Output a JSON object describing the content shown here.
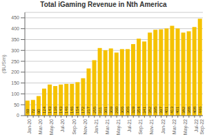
{
  "chart_data": {
    "type": "bar",
    "title": "Total iGaming Revenue in Nth America",
    "ylabel": "($USm)",
    "categories": [
      "Jan-20",
      null,
      "Mar-20",
      null,
      "May-20",
      null,
      "Jul-20",
      null,
      "Sep-20",
      null,
      "Nov-20",
      null,
      "Jan-21",
      null,
      "Mar-21",
      null,
      "May-21",
      null,
      "Jul-21",
      null,
      "Sep-21",
      null,
      "Nov-21",
      null,
      "Jan-22",
      null,
      "Mar-22",
      null,
      "May-22",
      null,
      "Jul-22",
      "Sep-22"
    ],
    "values": [
      69,
      72,
      90,
      124,
      143,
      136,
      143,
      146,
      146,
      154,
      172,
      217,
      255,
      311,
      301,
      309,
      290,
      306,
      306,
      329,
      354,
      341,
      382,
      395,
      397,
      401,
      413,
      401,
      382,
      388,
      408,
      446
    ],
    "color": "#F5C200",
    "ylim": [
      0,
      475
    ],
    "yticks": [
      0,
      50,
      100,
      150,
      200,
      250,
      300,
      350,
      400,
      450
    ],
    "grid": true,
    "data_labels": true
  }
}
